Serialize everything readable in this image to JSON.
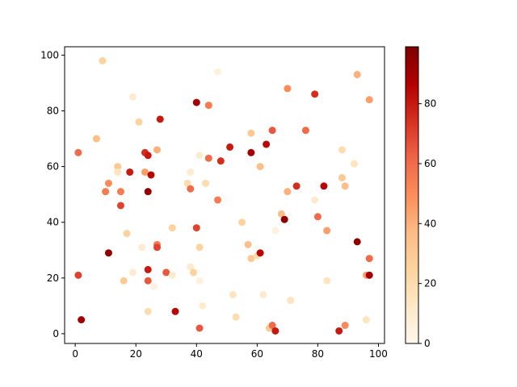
{
  "chart_data": {
    "type": "scatter",
    "x": [
      1,
      1,
      2,
      7,
      9,
      10,
      11,
      11,
      14,
      14,
      15,
      15,
      17,
      16,
      18,
      19,
      19,
      21,
      22,
      23,
      23,
      24,
      24,
      24,
      24,
      24,
      25,
      26,
      27,
      27,
      27,
      28,
      30,
      32,
      32,
      33,
      37,
      38,
      38,
      38,
      39,
      40,
      40,
      41,
      41,
      41,
      41,
      42,
      43,
      44,
      44,
      47,
      47,
      48,
      51,
      52,
      53,
      55,
      57,
      58,
      58,
      58,
      60,
      61,
      61,
      62,
      63,
      64,
      65,
      65,
      66,
      66,
      68,
      69,
      70,
      70,
      71,
      73,
      76,
      79,
      79,
      80,
      82,
      83,
      83,
      87,
      88,
      88,
      89,
      89,
      92,
      93,
      93,
      96,
      96,
      97,
      97,
      97
    ],
    "values": [
      65,
      21,
      5,
      70,
      98,
      51,
      54,
      29,
      60,
      58,
      51,
      46,
      36,
      19,
      58,
      85,
      22,
      76,
      31,
      65,
      58,
      64,
      51,
      23,
      19,
      8,
      57,
      17,
      66,
      32,
      31,
      77,
      22,
      38,
      21,
      8,
      54,
      58,
      52,
      24,
      22,
      83,
      38,
      64,
      31,
      19,
      2,
      10,
      54,
      82,
      63,
      94,
      48,
      62,
      67,
      14,
      6,
      40,
      32,
      72,
      65,
      27,
      28,
      29,
      60,
      14,
      68,
      2,
      3,
      73,
      1,
      37,
      43,
      41,
      88,
      51,
      12,
      53,
      73,
      86,
      48,
      42,
      53,
      37,
      19,
      1,
      66,
      56,
      53,
      3,
      61,
      93,
      33,
      21,
      5,
      84,
      27,
      21
    ],
    "c": [
      60,
      70,
      90,
      35,
      25,
      55,
      50,
      95,
      30,
      15,
      55,
      70,
      25,
      30,
      80,
      10,
      10,
      25,
      10,
      75,
      45,
      80,
      95,
      80,
      65,
      20,
      85,
      5,
      40,
      55,
      70,
      80,
      65,
      25,
      10,
      85,
      20,
      10,
      60,
      10,
      25,
      90,
      70,
      10,
      25,
      5,
      65,
      10,
      20,
      55,
      60,
      5,
      55,
      75,
      80,
      15,
      20,
      25,
      35,
      30,
      90,
      30,
      20,
      85,
      35,
      10,
      85,
      30,
      60,
      65,
      80,
      5,
      35,
      95,
      50,
      40,
      15,
      75,
      60,
      75,
      10,
      60,
      85,
      45,
      15,
      80,
      20,
      30,
      35,
      50,
      15,
      40,
      95,
      45,
      15,
      45,
      60,
      90
    ],
    "colormap": [
      "#fff7ec",
      "#fee8c8",
      "#fdd49e",
      "#fdbb84",
      "#fc8d59",
      "#ef6548",
      "#d7301f",
      "#b30000",
      "#7f0000"
    ],
    "clim": [
      0,
      99
    ],
    "cticks": [
      0,
      20,
      40,
      60,
      80
    ],
    "xlim": [
      -3.5,
      102
    ],
    "xticks": [
      0,
      20,
      40,
      60,
      80,
      100
    ],
    "ylim": [
      -3.5,
      103
    ],
    "yticks": [
      0,
      20,
      40,
      60,
      80,
      100
    ]
  }
}
